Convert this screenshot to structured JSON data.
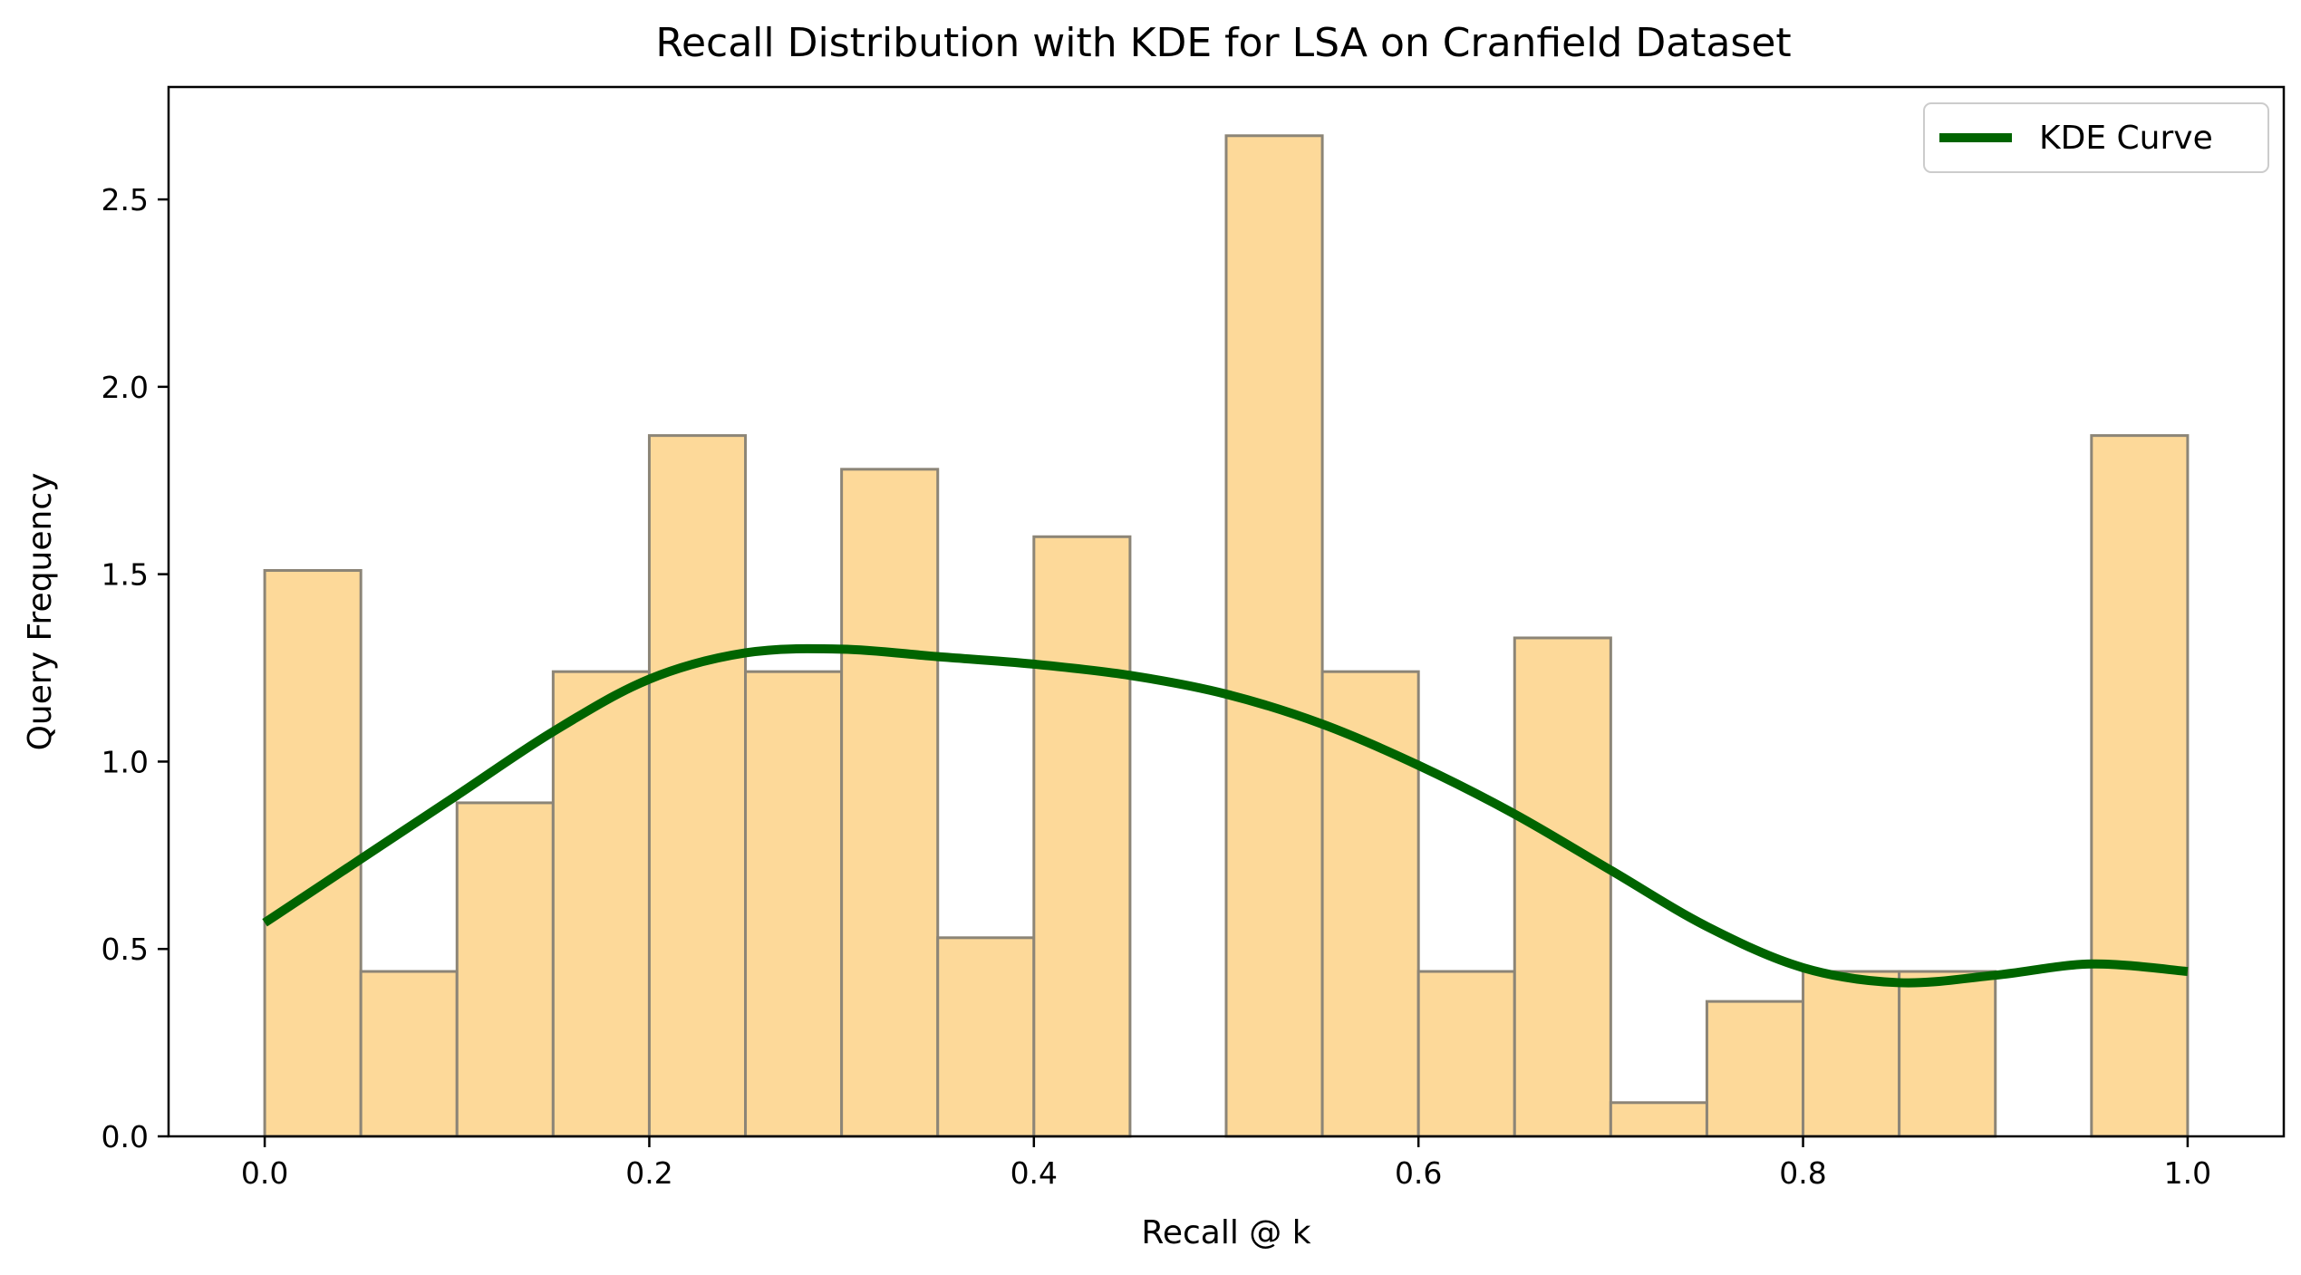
{
  "chart_data": {
    "type": "bar",
    "title": "Recall Distribution with KDE for LSA on Cranfield Dataset",
    "xlabel": "Recall @ k",
    "ylabel": "Query Frequency",
    "xlim": [
      -0.05,
      1.05
    ],
    "ylim": [
      0,
      2.8
    ],
    "xticks": [
      "0.0",
      "0.2",
      "0.4",
      "0.6",
      "0.8",
      "1.0"
    ],
    "xtick_values": [
      0.0,
      0.2,
      0.4,
      0.6,
      0.8,
      1.0
    ],
    "yticks": [
      "0.0",
      "0.5",
      "1.0",
      "1.5",
      "2.0",
      "2.5"
    ],
    "ytick_values": [
      0.0,
      0.5,
      1.0,
      1.5,
      2.0,
      2.5
    ],
    "grid": false,
    "legend_position": "top-right",
    "histogram": {
      "bin_edges": [
        0.0,
        0.05,
        0.1,
        0.15,
        0.2,
        0.25,
        0.3,
        0.35,
        0.4,
        0.45,
        0.5,
        0.55,
        0.6,
        0.65,
        0.7,
        0.75,
        0.8,
        0.85,
        0.9,
        0.95,
        1.0
      ],
      "values": [
        1.51,
        0.44,
        0.89,
        1.24,
        1.87,
        1.24,
        1.78,
        0.53,
        1.6,
        0.0,
        2.67,
        1.24,
        0.44,
        1.33,
        0.09,
        0.36,
        0.44,
        0.44,
        0.0,
        1.87
      ],
      "fill_color": "#FDD999",
      "edge_color": "#8C8577"
    },
    "kde": {
      "name": "KDE Curve",
      "color": "#006400",
      "x": [
        0.0,
        0.05,
        0.1,
        0.15,
        0.2,
        0.25,
        0.3,
        0.35,
        0.4,
        0.45,
        0.5,
        0.55,
        0.6,
        0.65,
        0.7,
        0.75,
        0.8,
        0.85,
        0.9,
        0.95,
        1.0
      ],
      "y": [
        0.57,
        0.74,
        0.91,
        1.08,
        1.22,
        1.29,
        1.3,
        1.28,
        1.26,
        1.23,
        1.18,
        1.1,
        0.99,
        0.86,
        0.71,
        0.56,
        0.45,
        0.41,
        0.43,
        0.46,
        0.44
      ]
    }
  }
}
